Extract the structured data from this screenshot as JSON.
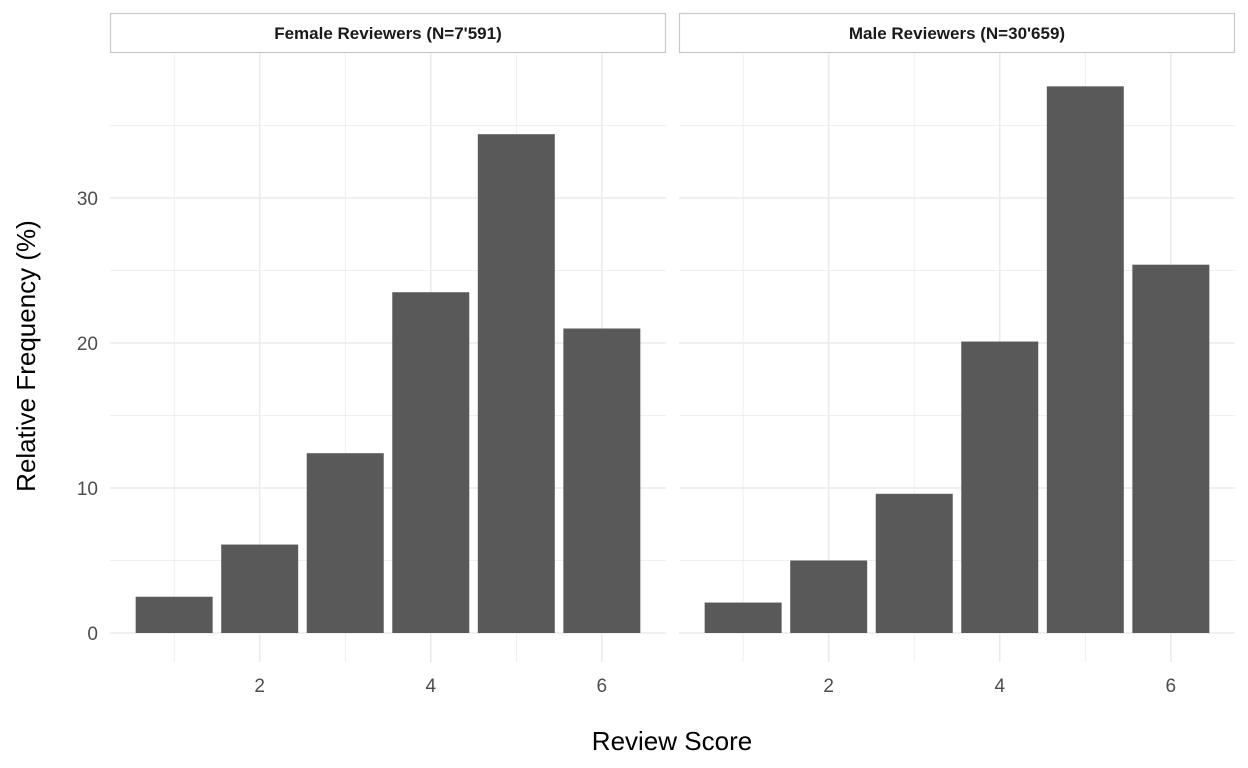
{
  "chart_data": {
    "type": "bar",
    "xlabel": "Review Score",
    "ylabel": "Relative Frequency (%)",
    "x_ticks": [
      2,
      4,
      6
    ],
    "y_ticks": [
      0,
      10,
      20,
      30
    ],
    "xlim": [
      0.25,
      6.75
    ],
    "ylim": [
      -2,
      40
    ],
    "grid": true,
    "bar_color": "#595959",
    "gridline_color": "#ebebeb",
    "panels": [
      {
        "title": "Female Reviewers (N=7'591)",
        "x": [
          1,
          2,
          3,
          4,
          5,
          6
        ],
        "values": [
          2.5,
          6.1,
          12.4,
          23.5,
          34.4,
          21.0
        ]
      },
      {
        "title": "Male Reviewers (N=30'659)",
        "x": [
          1,
          2,
          3,
          4,
          5,
          6
        ],
        "values": [
          2.1,
          5.0,
          9.6,
          20.1,
          37.7,
          25.4
        ]
      }
    ]
  }
}
